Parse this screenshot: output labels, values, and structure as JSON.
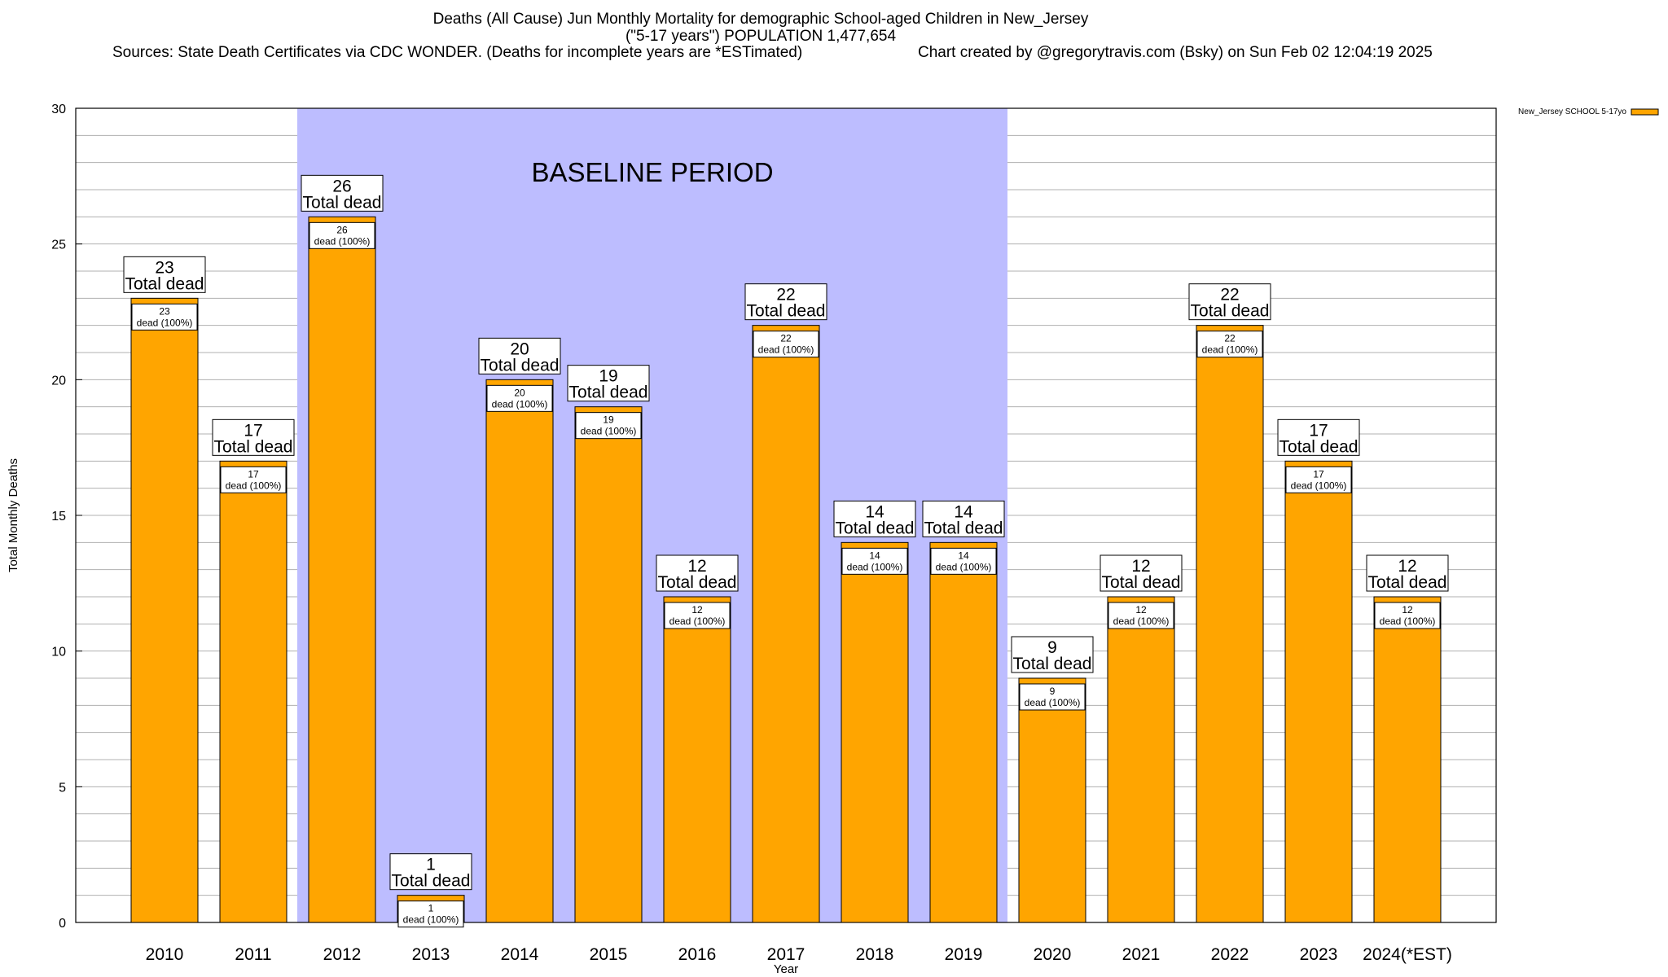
{
  "header": {
    "title_line1": "Deaths (All Cause) Jun Monthly Mortality for demographic School-aged Children in New_Jersey",
    "title_line2": "(\"5-17 years\") POPULATION 1,477,654",
    "sources": "Sources: State Death Certificates via CDC WONDER. (Deaths for incomplete years are *ESTimated)",
    "credit": "Chart created by @gregorytravis.com (Bsky) on Sun Feb 02 12:04:19 2025"
  },
  "chart_data": {
    "type": "bar",
    "categories": [
      "2010",
      "2011",
      "2012",
      "2013",
      "2014",
      "2015",
      "2016",
      "2017",
      "2018",
      "2019",
      "2020",
      "2021",
      "2022",
      "2023",
      "2024(*EST)"
    ],
    "series": [
      {
        "name": "New_Jersey SCHOOL 5-17yo",
        "values": [
          23,
          17,
          26,
          1,
          20,
          19,
          12,
          22,
          14,
          14,
          9,
          12,
          22,
          17,
          12
        ],
        "color": "#FFA500"
      }
    ],
    "xlabel": "Year",
    "ylabel": "Total Monthly Deaths",
    "ylim": [
      0,
      30
    ],
    "yticks": [
      0,
      5,
      10,
      15,
      20,
      25,
      30
    ],
    "grid": "horizontal",
    "legend_position": "top-right",
    "total_label_suffix": "Total dead",
    "inner_label_suffix": "dead (100%)",
    "annotation": {
      "text": "BASELINE PERIOD",
      "from_category": "2012",
      "to_category": "2019",
      "color": "#BDBDFF"
    }
  }
}
